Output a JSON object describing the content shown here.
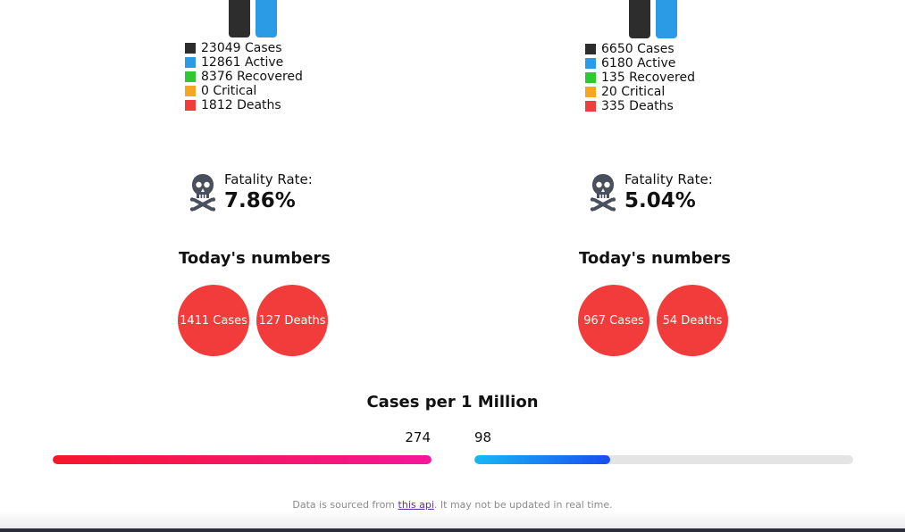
{
  "countries": [
    {
      "legend": {
        "cases": "23049 Cases",
        "active": "12861 Active",
        "recovered": "8376 Recovered",
        "critical": "0 Critical",
        "deaths": "1812 Deaths"
      },
      "fatality_label": "Fatality Rate:",
      "fatality_rate": "7.86%",
      "today_title": "Today's numbers",
      "today_cases": "1411 Cases",
      "today_deaths": "127 Deaths"
    },
    {
      "legend": {
        "cases": "6650 Cases",
        "active": "6180 Active",
        "recovered": "135 Recovered",
        "critical": "20 Critical",
        "deaths": "335 Deaths"
      },
      "fatality_label": "Fatality Rate:",
      "fatality_rate": "5.04%",
      "today_title": "Today's numbers",
      "today_cases": "967 Cases",
      "today_deaths": "54 Deaths"
    }
  ],
  "per_million": {
    "title": "Cases per 1 Million",
    "left_value": "274",
    "right_value": "98",
    "left_fill_fraction": 1.0,
    "right_fill_fraction": 0.358
  },
  "footer": {
    "prefix": "Data is sourced from ",
    "link_text": "this api",
    "suffix": ". It may not be updated in real time."
  },
  "colors": {
    "cases": "#2d2d2d",
    "active": "#2b9be6",
    "recovered": "#2ec832",
    "critical": "#f5a623",
    "deaths": "#f23b3b"
  },
  "icons": {
    "fatality": "skull-crossbones-icon"
  }
}
